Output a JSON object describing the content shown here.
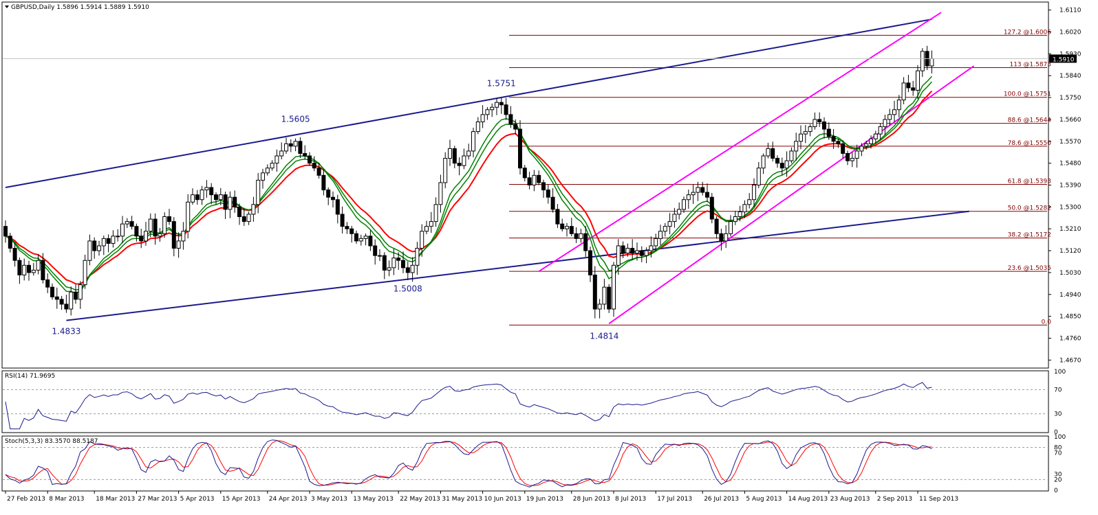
{
  "panels": {
    "main": {
      "title": "GBPUSD,Daily  1.5896 1.5914 1.5889 1.5910"
    },
    "rsi": {
      "title": "RSI(14) 71.9695"
    },
    "stoch": {
      "title": "Stoch(5,3,3) 83.3570 88.5187"
    }
  },
  "colors": {
    "up_candle": "#ffffff",
    "down_candle": "#000000",
    "ma_fast": "#008000",
    "ma_slow": "#ff0000",
    "trend_channel": "#1a1a8c",
    "rising_channel": "#ff00ff",
    "fib_line": "#800000",
    "rsi_line": "#1a1a8c",
    "stoch_main": "#1a1a8c",
    "stoch_signal": "#ff0000",
    "ma_highlight": "#ffff00"
  },
  "chart_data": [
    {
      "type": "candlestick",
      "title": "GBPUSD,Daily  1.5896 1.5914 1.5889 1.5910",
      "ylim": [
        1.464,
        1.614
      ],
      "current_price": 1.591,
      "y_ticks": [
        1.611,
        1.602,
        1.593,
        1.584,
        1.575,
        1.566,
        1.557,
        1.548,
        1.539,
        1.53,
        1.521,
        1.512,
        1.503,
        1.494,
        1.485,
        1.476,
        1.467
      ],
      "y_tick_labels": [
        "1.6110",
        "1.6020",
        "1.5930",
        "1.5840",
        "1.5750",
        "1.5660",
        "1.5570",
        "1.5480",
        "1.5390",
        "1.5300",
        "1.5210",
        "1.5120",
        "1.5030",
        "1.4940",
        "1.4850",
        "1.4760",
        "1.4670"
      ],
      "x_labels": [
        "27 Feb 2013",
        "8 Mar 2013",
        "18 Mar 2013",
        "27 Mar 2013",
        "5 Apr 2013",
        "15 Apr 2013",
        "24 Apr 2013",
        "3 May 2013",
        "13 May 2013",
        "22 May 2013",
        "31 May 2013",
        "10 Jun 2013",
        "19 Jun 2013",
        "28 Jun 2013",
        "8 Jul 2013",
        "17 Jul 2013",
        "26 Jul 2013",
        "5 Aug 2013",
        "14 Aug 2013",
        "23 Aug 2013",
        "2 Sep 2013",
        "11 Sep 2013"
      ],
      "swing_labels": [
        {
          "text": "1.4833",
          "bar": 13,
          "price": 1.4833,
          "pos": "below"
        },
        {
          "text": "1.5605",
          "bar": 62,
          "price": 1.5605,
          "pos": "above"
        },
        {
          "text": "1.5008",
          "bar": 86,
          "price": 1.5008,
          "pos": "below"
        },
        {
          "text": "1.5751",
          "bar": 106,
          "price": 1.5751,
          "pos": "above"
        },
        {
          "text": "1.4814",
          "bar": 128,
          "price": 1.4814,
          "pos": "below"
        }
      ],
      "fib_levels": [
        {
          "label": "127.2 @1.6006",
          "price": 1.6006
        },
        {
          "label": "113 @1.5873",
          "price": 1.5873
        },
        {
          "label": "100.0 @1.5751",
          "price": 1.5751
        },
        {
          "label": "88.6 @1.5644",
          "price": 1.5644
        },
        {
          "label": "78.6 @1.5550",
          "price": 1.555
        },
        {
          "label": "61.8 @1.5393",
          "price": 1.5393
        },
        {
          "label": "50.0 @1.5282",
          "price": 1.5282
        },
        {
          "label": "38.2 @1.5172",
          "price": 1.5172
        },
        {
          "label": "23.6 @1.5035",
          "price": 1.5035
        },
        {
          "label": "0.0",
          "price": 1.4814
        }
      ],
      "trendlines": [
        {
          "name": "upper-channel",
          "from": [
            0,
            1.538
          ],
          "to": [
            198,
            1.6072
          ]
        },
        {
          "name": "lower-channel",
          "from": [
            13,
            1.4833
          ],
          "to": [
            206,
            1.5282
          ]
        },
        {
          "name": "rising-channel-top",
          "from": [
            114,
            1.5035
          ],
          "to": [
            200,
            1.61
          ]
        },
        {
          "name": "rising-channel-bottom",
          "from": [
            129,
            1.482
          ],
          "to": [
            207,
            1.588
          ]
        }
      ],
      "closes": [
        1.518,
        1.513,
        1.508,
        1.502,
        1.506,
        1.503,
        1.504,
        1.508,
        1.5,
        1.497,
        1.493,
        1.492,
        1.49,
        1.488,
        1.495,
        1.492,
        1.498,
        1.508,
        1.516,
        1.512,
        1.514,
        1.517,
        1.515,
        1.518,
        1.518,
        1.523,
        1.524,
        1.522,
        1.518,
        1.516,
        1.52,
        1.525,
        1.518,
        1.519,
        1.526,
        1.524,
        1.513,
        1.516,
        1.52,
        1.532,
        1.535,
        1.533,
        1.537,
        1.538,
        1.535,
        1.533,
        1.535,
        1.529,
        1.534,
        1.53,
        1.526,
        1.524,
        1.527,
        1.531,
        1.541,
        1.544,
        1.546,
        1.548,
        1.551,
        1.553,
        1.556,
        1.555,
        1.557,
        1.552,
        1.551,
        1.548,
        1.546,
        1.543,
        1.537,
        1.534,
        1.533,
        1.527,
        1.522,
        1.521,
        1.519,
        1.516,
        1.517,
        1.518,
        1.514,
        1.51,
        1.51,
        1.504,
        1.505,
        1.509,
        1.508,
        1.505,
        1.503,
        1.506,
        1.513,
        1.52,
        1.522,
        1.524,
        1.531,
        1.54,
        1.55,
        1.554,
        1.548,
        1.547,
        1.551,
        1.553,
        1.561,
        1.565,
        1.568,
        1.57,
        1.571,
        1.573,
        1.572,
        1.568,
        1.564,
        1.562,
        1.546,
        1.542,
        1.539,
        1.543,
        1.54,
        1.537,
        1.534,
        1.529,
        1.523,
        1.521,
        1.522,
        1.519,
        1.517,
        1.519,
        1.512,
        1.502,
        1.488,
        1.49,
        1.497,
        1.488,
        1.506,
        1.514,
        1.511,
        1.513,
        1.511,
        1.512,
        1.51,
        1.512,
        1.514,
        1.517,
        1.52,
        1.522,
        1.524,
        1.527,
        1.529,
        1.533,
        1.535,
        1.536,
        1.538,
        1.536,
        1.534,
        1.525,
        1.519,
        1.516,
        1.519,
        1.524,
        1.526,
        1.528,
        1.531,
        1.533,
        1.539,
        1.546,
        1.551,
        1.554,
        1.55,
        1.548,
        1.546,
        1.549,
        1.553,
        1.557,
        1.56,
        1.561,
        1.563,
        1.566,
        1.565,
        1.562,
        1.559,
        1.557,
        1.556,
        1.552,
        1.549,
        1.55,
        1.553,
        1.555,
        1.556,
        1.558,
        1.56,
        1.563,
        1.566,
        1.568,
        1.57,
        1.574,
        1.581,
        1.579,
        1.578,
        1.586,
        1.594,
        1.588,
        1.591
      ],
      "series": [
        {
          "name": "RSI(14) 71.9695",
          "panel": "rsi",
          "ylim": [
            0,
            100
          ],
          "levels": [
            70,
            30
          ],
          "y_ticks": [
            100,
            70,
            30,
            0
          ]
        },
        {
          "name": "Stoch(5,3,3) 83.3570 88.5187",
          "panel": "stoch",
          "ylim": [
            0,
            100
          ],
          "levels": [
            80,
            20
          ],
          "y_ticks": [
            100,
            80,
            70,
            30,
            20,
            0
          ]
        }
      ]
    }
  ]
}
